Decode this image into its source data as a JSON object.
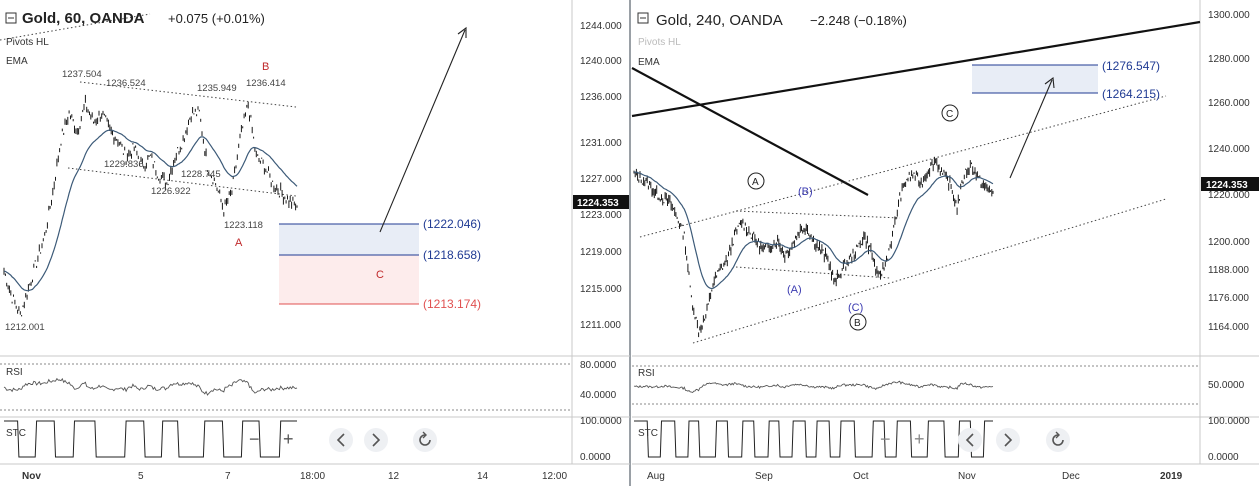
{
  "left": {
    "title": "Gold, 60, OANDA",
    "change": "+0.075 (+0.01%)",
    "indicators": [
      "Pivots HL",
      "EMA"
    ],
    "price_tag": "1224.353",
    "y_ticks": [
      "1244.000",
      "1240.000",
      "1236.000",
      "1231.000",
      "1227.000",
      "1223.000",
      "1219.000",
      "1215.000",
      "1211.000"
    ],
    "x_ticks": [
      "Nov",
      "5",
      "7",
      "18:00",
      "12",
      "14",
      "12:00"
    ],
    "pivots": [
      "1237.504",
      "1236.524",
      "1235.949",
      "1236.414",
      "1229.836",
      "1228.745",
      "1226.922",
      "1223.118",
      "1212.001"
    ],
    "wave_labels": [
      "B",
      "A",
      "C"
    ],
    "targets": [
      "(1222.046)",
      "(1218.658)",
      "(1213.174)"
    ],
    "rsi": {
      "label": "RSI",
      "ticks": [
        "80.0000",
        "40.0000"
      ]
    },
    "stc": {
      "label": "STC",
      "ticks": [
        "100.0000",
        "0.0000"
      ]
    }
  },
  "right": {
    "title": "Gold, 240, OANDA",
    "change": "−2.248 (−0.18%)",
    "indicators": [
      "Pivots HL",
      "EMA"
    ],
    "price_tag": "1224.353",
    "y_ticks": [
      "1300.000",
      "1280.000",
      "1260.000",
      "1240.000",
      "1220.000",
      "1200.000",
      "1188.000",
      "1176.000",
      "1164.000"
    ],
    "x_ticks": [
      "Aug",
      "Sep",
      "Oct",
      "Nov",
      "Dec",
      "2019"
    ],
    "wave_labels": [
      "A",
      "(B)",
      "(A)",
      "(C)",
      "B",
      "C"
    ],
    "targets": [
      "(1276.547)",
      "(1264.215)"
    ],
    "rsi": {
      "label": "RSI",
      "ticks": [
        "50.0000"
      ]
    },
    "stc": {
      "label": "STC",
      "ticks": [
        "100.0000",
        "0.0000"
      ]
    }
  },
  "chart_data": [
    {
      "type": "line",
      "title": "Gold, 60, OANDA",
      "series": [
        {
          "values": [
            1217,
            1214,
            1212,
            1215,
            1218,
            1221,
            1226,
            1232,
            1235,
            1233,
            1236,
            1234,
            1235,
            1233,
            1232,
            1230,
            1231,
            1229,
            1230,
            1228,
            1227,
            1230,
            1232,
            1235,
            1235,
            1229,
            1227,
            1224,
            1226,
            1232,
            1236,
            1230,
            1229,
            1227,
            1226,
            1225,
            1224.353
          ]
        }
      ],
      "ylim": [
        1208,
        1247
      ],
      "colors": {
        "price": "#1a1a1a",
        "ema": "#3c5a78",
        "rsi": "#555555",
        "target_blue": "#1f3a93",
        "target_red": "#e05050"
      }
    },
    {
      "type": "line",
      "title": "Gold, 240, OANDA",
      "series": [
        {
          "values": [
            1232,
            1230,
            1228,
            1224,
            1222,
            1220,
            1214,
            1206,
            1180,
            1166,
            1172,
            1186,
            1192,
            1196,
            1206,
            1212,
            1208,
            1204,
            1200,
            1202,
            1204,
            1198,
            1202,
            1208,
            1210,
            1204,
            1200,
            1196,
            1186,
            1192,
            1196,
            1200,
            1206,
            1200,
            1188,
            1194,
            1206,
            1222,
            1230,
            1232,
            1228,
            1234,
            1238,
            1232,
            1228,
            1218,
            1232,
            1236,
            1230,
            1226,
            1224.353
          ]
        }
      ],
      "ylim": [
        1158,
        1302
      ],
      "colors": {
        "price": "#1a1a1a",
        "ema": "#3c5a78",
        "box": "#e8edf6"
      }
    }
  ]
}
